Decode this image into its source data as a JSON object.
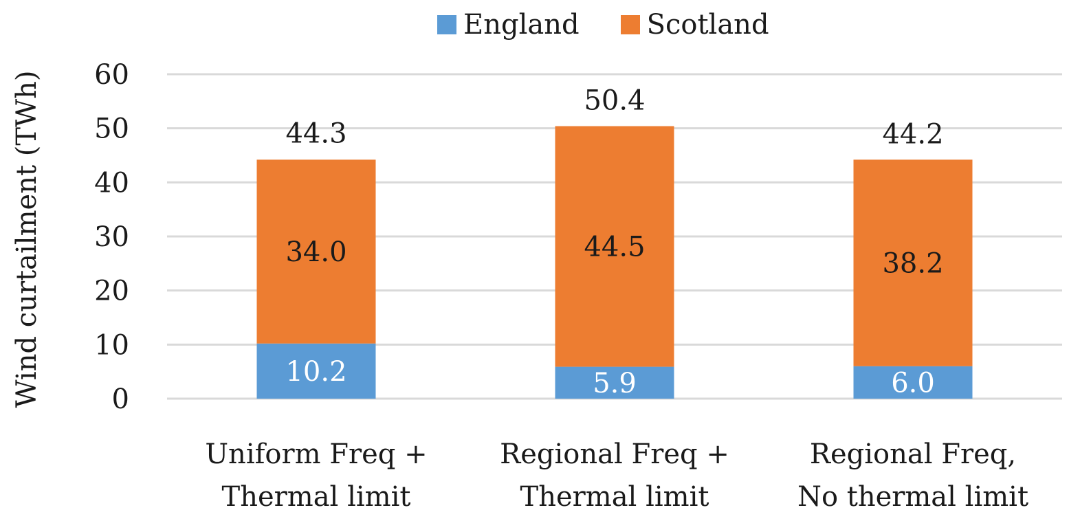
{
  "chart_data": {
    "type": "bar",
    "stacked": true,
    "ylabel": "Wind curtailment (TWh)",
    "xlabel": "",
    "ylim": [
      0,
      60
    ],
    "yticks": [
      "0",
      "10",
      "20",
      "30",
      "40",
      "50",
      "60"
    ],
    "grid": true,
    "legend_position": "top",
    "categories": [
      [
        "Uniform Freq +",
        "Thermal limit"
      ],
      [
        "Regional Freq +",
        "Thermal limit"
      ],
      [
        "Regional Freq,",
        "No thermal limit"
      ]
    ],
    "series": [
      {
        "name": "England",
        "color": "#5B9BD5",
        "values": [
          10.2,
          5.9,
          6.0
        ],
        "labels": [
          "10.2",
          "5.9",
          "6.0"
        ]
      },
      {
        "name": "Scotland",
        "color": "#ED7D31",
        "values": [
          34.0,
          44.5,
          38.2
        ],
        "labels": [
          "34.0",
          "44.5",
          "38.2"
        ]
      }
    ],
    "totals": [
      44.3,
      50.4,
      44.2
    ],
    "total_labels": [
      "44.3",
      "50.4",
      "44.2"
    ]
  }
}
